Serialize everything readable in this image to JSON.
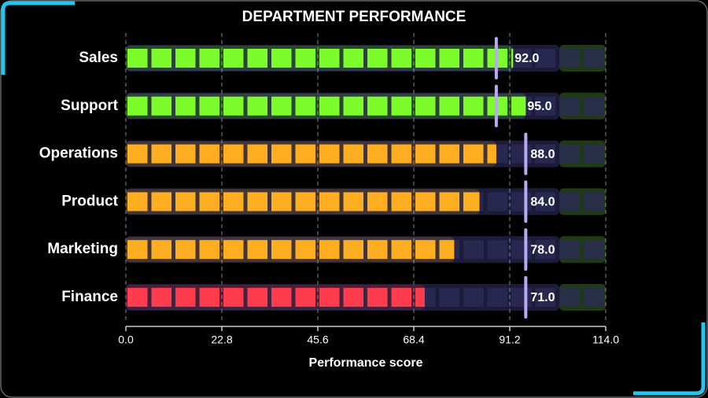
{
  "chart_data": {
    "type": "bullet",
    "title": "DEPARTMENT PERFORMANCE",
    "x_label": "Performance score",
    "categories": [
      "Sales",
      "Support",
      "Operations",
      "Product",
      "Marketing",
      "Finance"
    ],
    "values": [
      92,
      95,
      88,
      84,
      78,
      71
    ],
    "value_labels": [
      "92.0",
      "95.0",
      "88.0",
      "84.0",
      "78.0",
      "71.0"
    ],
    "targets": [
      88,
      88,
      95,
      95,
      95,
      95
    ],
    "colors": [
      "#7cfc2a",
      "#7cfc2a",
      "#ffae21",
      "#ffae21",
      "#ffae21",
      "#ff3b4e"
    ],
    "ranges": [
      103,
      114
    ],
    "range_colors": [
      "#1c1c3a",
      "#1f3a14"
    ],
    "target_color": "#b9a9f5",
    "xlim": [
      0,
      114
    ],
    "xticks": [
      {
        "value": 0,
        "label": "0.0"
      },
      22.8,
      45.6,
      68.4,
      91.2,
      {
        "value": 114,
        "label": "114.0"
      }
    ],
    "grid": true
  }
}
